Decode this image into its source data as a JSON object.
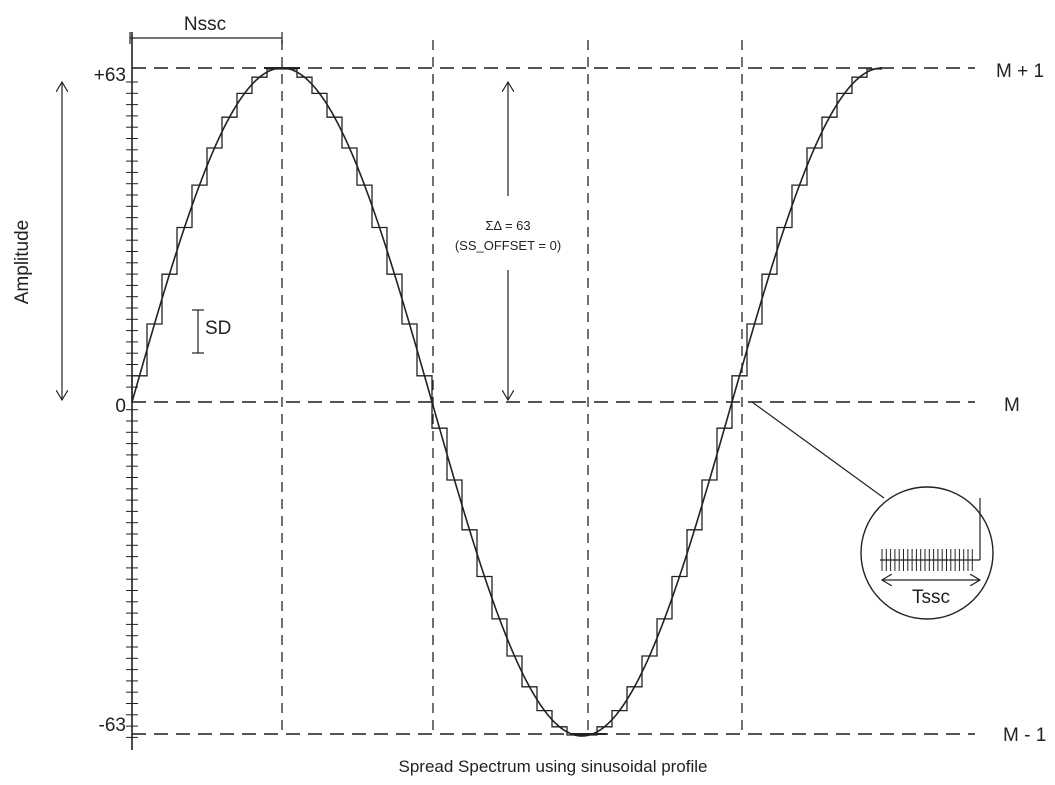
{
  "labels": {
    "plus_63": "+63",
    "zero": "0",
    "minus_63": "-63",
    "m_plus_1": "M + 1",
    "m": "M",
    "m_minus_1": "M - 1",
    "amplitude": "Amplitude",
    "nssc": "Nssc",
    "sd": "SD",
    "sigma_delta": "ΣΔ = 63",
    "ss_offset": "(SS_OFFSET = 0)",
    "tssc": "Tssc",
    "caption": "Spread Spectrum using sinusoidal profile"
  },
  "profile": {
    "amplitude_max": 63,
    "amplitude_min": -63,
    "periods_shown": 1.25
  }
}
